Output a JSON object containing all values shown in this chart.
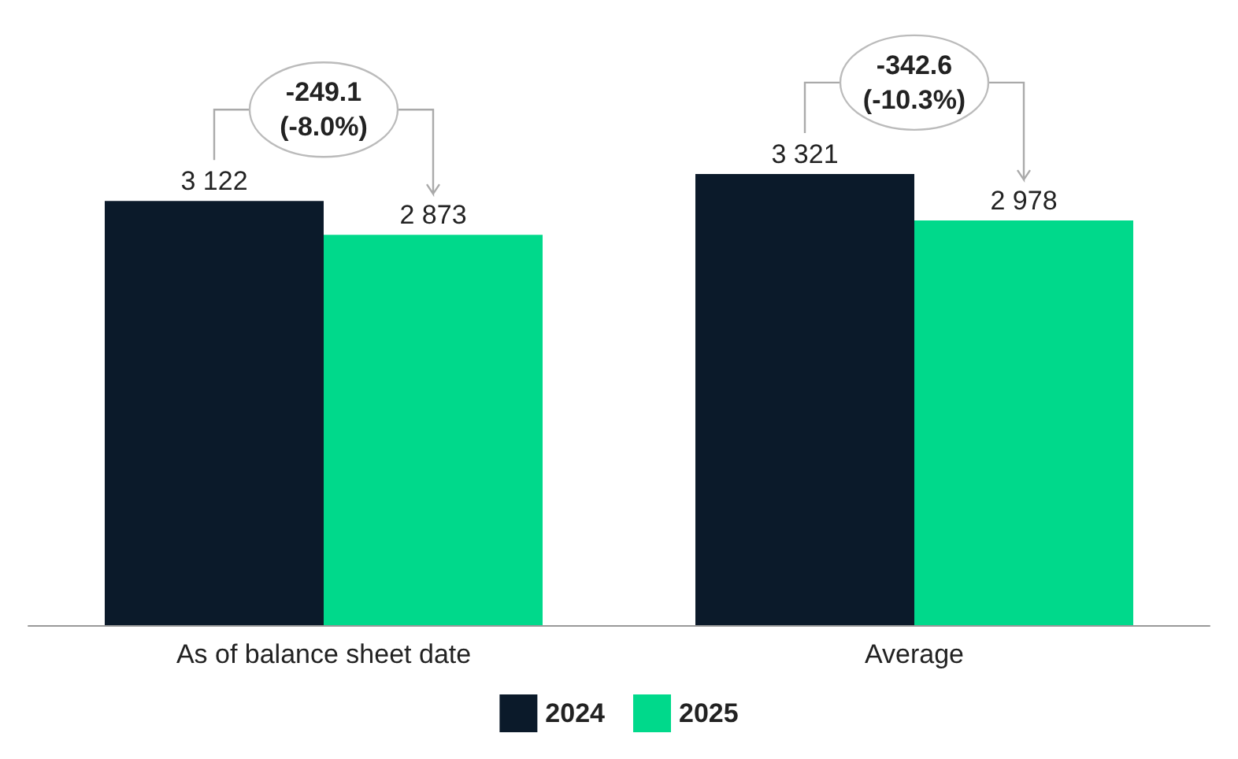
{
  "chart_data": {
    "type": "bar",
    "categories": [
      "As of balance sheet date",
      "Average"
    ],
    "series": [
      {
        "name": "2024",
        "color": "#0b1a2a",
        "values": [
          3122,
          3321
        ],
        "value_labels": [
          "3 122",
          "3 321"
        ]
      },
      {
        "name": "2025",
        "color": "#00d98b",
        "values": [
          2873,
          2978
        ],
        "value_labels": [
          "2 873",
          "2 978"
        ]
      }
    ],
    "annotations": [
      "-249.1\n(-8.0%)",
      "-342.6\n(-10.3%)"
    ],
    "legend": "bottom"
  }
}
